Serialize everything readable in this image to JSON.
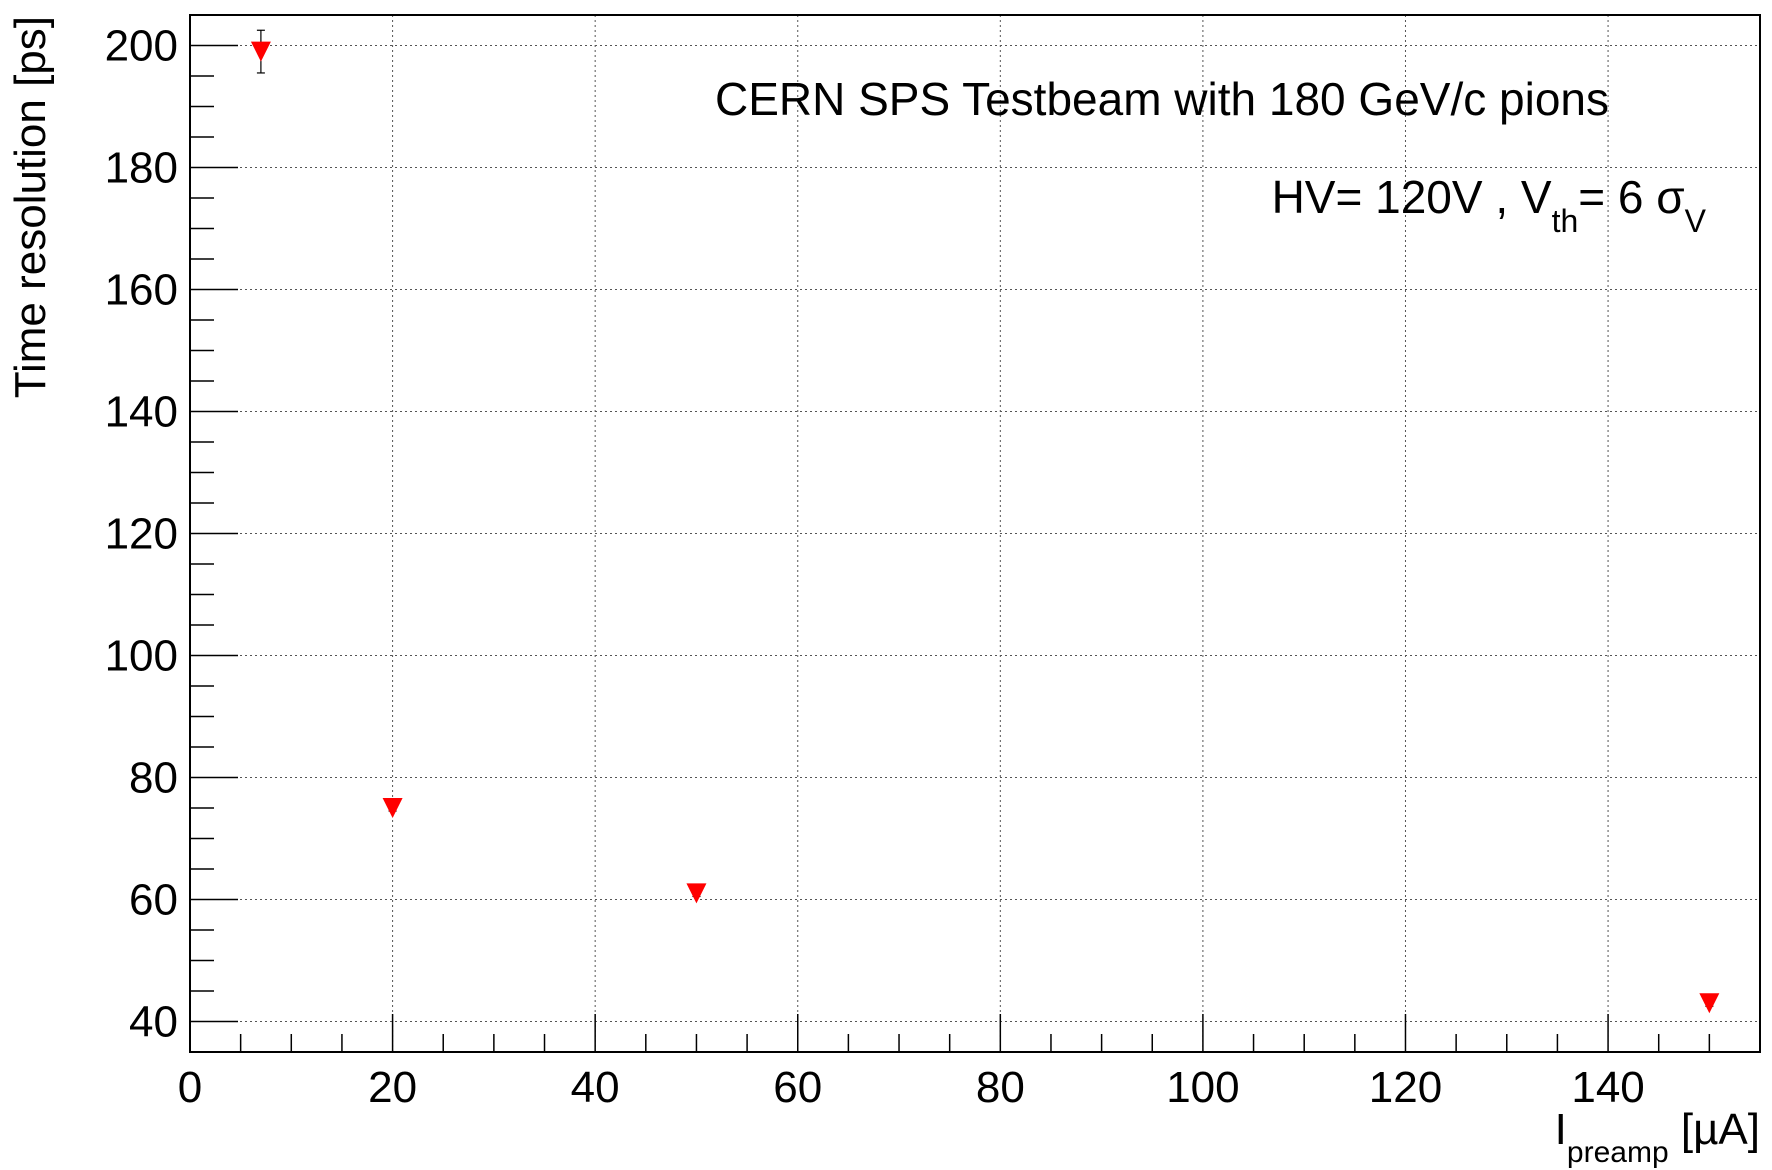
{
  "chart_data": {
    "type": "scatter",
    "title": "",
    "annotations": {
      "line1": "CERN SPS Testbeam with 180 GeV/c pions",
      "line2_prefix": "HV= 120V , V",
      "line2_sub1": "th",
      "line2_mid": "= 6 σ",
      "line2_sub2": "V"
    },
    "xlabel": {
      "main": "I",
      "sub": "preamp",
      "unit": " [µA]"
    },
    "ylabel": "Time resolution [ps]",
    "xlim": [
      0,
      155
    ],
    "ylim": [
      35,
      205
    ],
    "x_ticks": [
      0,
      20,
      40,
      60,
      80,
      100,
      120,
      140
    ],
    "y_ticks": [
      40,
      60,
      80,
      100,
      120,
      140,
      160,
      180,
      200
    ],
    "x_minor_step": 5,
    "y_minor_step": 5,
    "grid": true,
    "marker": "triangle-down",
    "marker_color": "#ff0000",
    "series": [
      {
        "x": [
          7,
          20,
          50,
          150
        ],
        "y": [
          199,
          75,
          61,
          43
        ],
        "y_err": [
          3.5,
          0.5,
          0.5,
          0.5
        ]
      }
    ]
  }
}
